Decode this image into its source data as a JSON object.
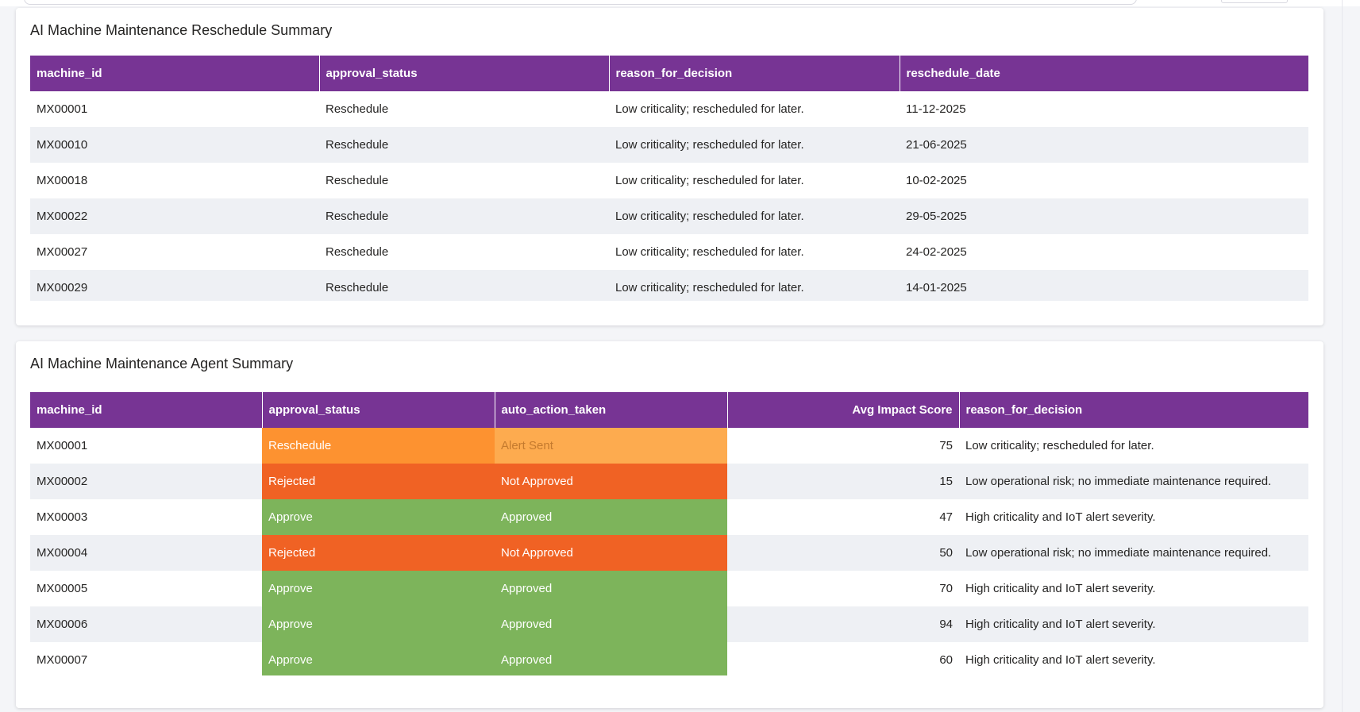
{
  "reschedule_summary": {
    "title": "AI Machine Maintenance Reschedule Summary",
    "columns": [
      "machine_id",
      "approval_status",
      "reason_for_decision",
      "reschedule_date"
    ],
    "rows": [
      {
        "machine_id": "MX00001",
        "approval_status": "Reschedule",
        "reason_for_decision": "Low criticality; rescheduled for later.",
        "reschedule_date": "11-12-2025"
      },
      {
        "machine_id": "MX00010",
        "approval_status": "Reschedule",
        "reason_for_decision": "Low criticality; rescheduled for later.",
        "reschedule_date": "21-06-2025"
      },
      {
        "machine_id": "MX00018",
        "approval_status": "Reschedule",
        "reason_for_decision": "Low criticality; rescheduled for later.",
        "reschedule_date": "10-02-2025"
      },
      {
        "machine_id": "MX00022",
        "approval_status": "Reschedule",
        "reason_for_decision": "Low criticality; rescheduled for later.",
        "reschedule_date": "29-05-2025"
      },
      {
        "machine_id": "MX00027",
        "approval_status": "Reschedule",
        "reason_for_decision": "Low criticality; rescheduled for later.",
        "reschedule_date": "24-02-2025"
      },
      {
        "machine_id": "MX00029",
        "approval_status": "Reschedule",
        "reason_for_decision": "Low criticality; rescheduled for later.",
        "reschedule_date": "14-01-2025"
      }
    ]
  },
  "agent_summary": {
    "title": "AI Machine Maintenance Agent Summary",
    "columns": [
      "machine_id",
      "approval_status",
      "auto_action_taken",
      "Avg Impact Score",
      "reason_for_decision"
    ],
    "rows": [
      {
        "machine_id": "MX00001",
        "approval_status": "Reschedule",
        "auto_action_taken": "Alert Sent",
        "avg_impact_score": "75",
        "reason_for_decision": "Low criticality; rescheduled for later."
      },
      {
        "machine_id": "MX00002",
        "approval_status": "Rejected",
        "auto_action_taken": "Not Approved",
        "avg_impact_score": "15",
        "reason_for_decision": "Low operational risk; no immediate maintenance required."
      },
      {
        "machine_id": "MX00003",
        "approval_status": "Approve",
        "auto_action_taken": "Approved",
        "avg_impact_score": "47",
        "reason_for_decision": "High criticality and IoT alert severity."
      },
      {
        "machine_id": "MX00004",
        "approval_status": "Rejected",
        "auto_action_taken": "Not Approved",
        "avg_impact_score": "50",
        "reason_for_decision": "Low operational risk; no immediate maintenance required."
      },
      {
        "machine_id": "MX00005",
        "approval_status": "Approve",
        "auto_action_taken": "Approved",
        "avg_impact_score": "70",
        "reason_for_decision": "High criticality and IoT alert severity."
      },
      {
        "machine_id": "MX00006",
        "approval_status": "Approve",
        "auto_action_taken": "Approved",
        "avg_impact_score": "94",
        "reason_for_decision": "High criticality and IoT alert severity."
      },
      {
        "machine_id": "MX00007",
        "approval_status": "Approve",
        "auto_action_taken": "Approved",
        "avg_impact_score": "60",
        "reason_for_decision": "High criticality and IoT alert severity."
      }
    ]
  },
  "colors": {
    "header_purple": "#773494",
    "reschedule_orange": "#fd9230",
    "alert_sent_orange": "#fdab4f",
    "rejected_red_orange": "#f06224",
    "approve_green": "#7db45b",
    "zebra_row": "#eef0f4"
  }
}
